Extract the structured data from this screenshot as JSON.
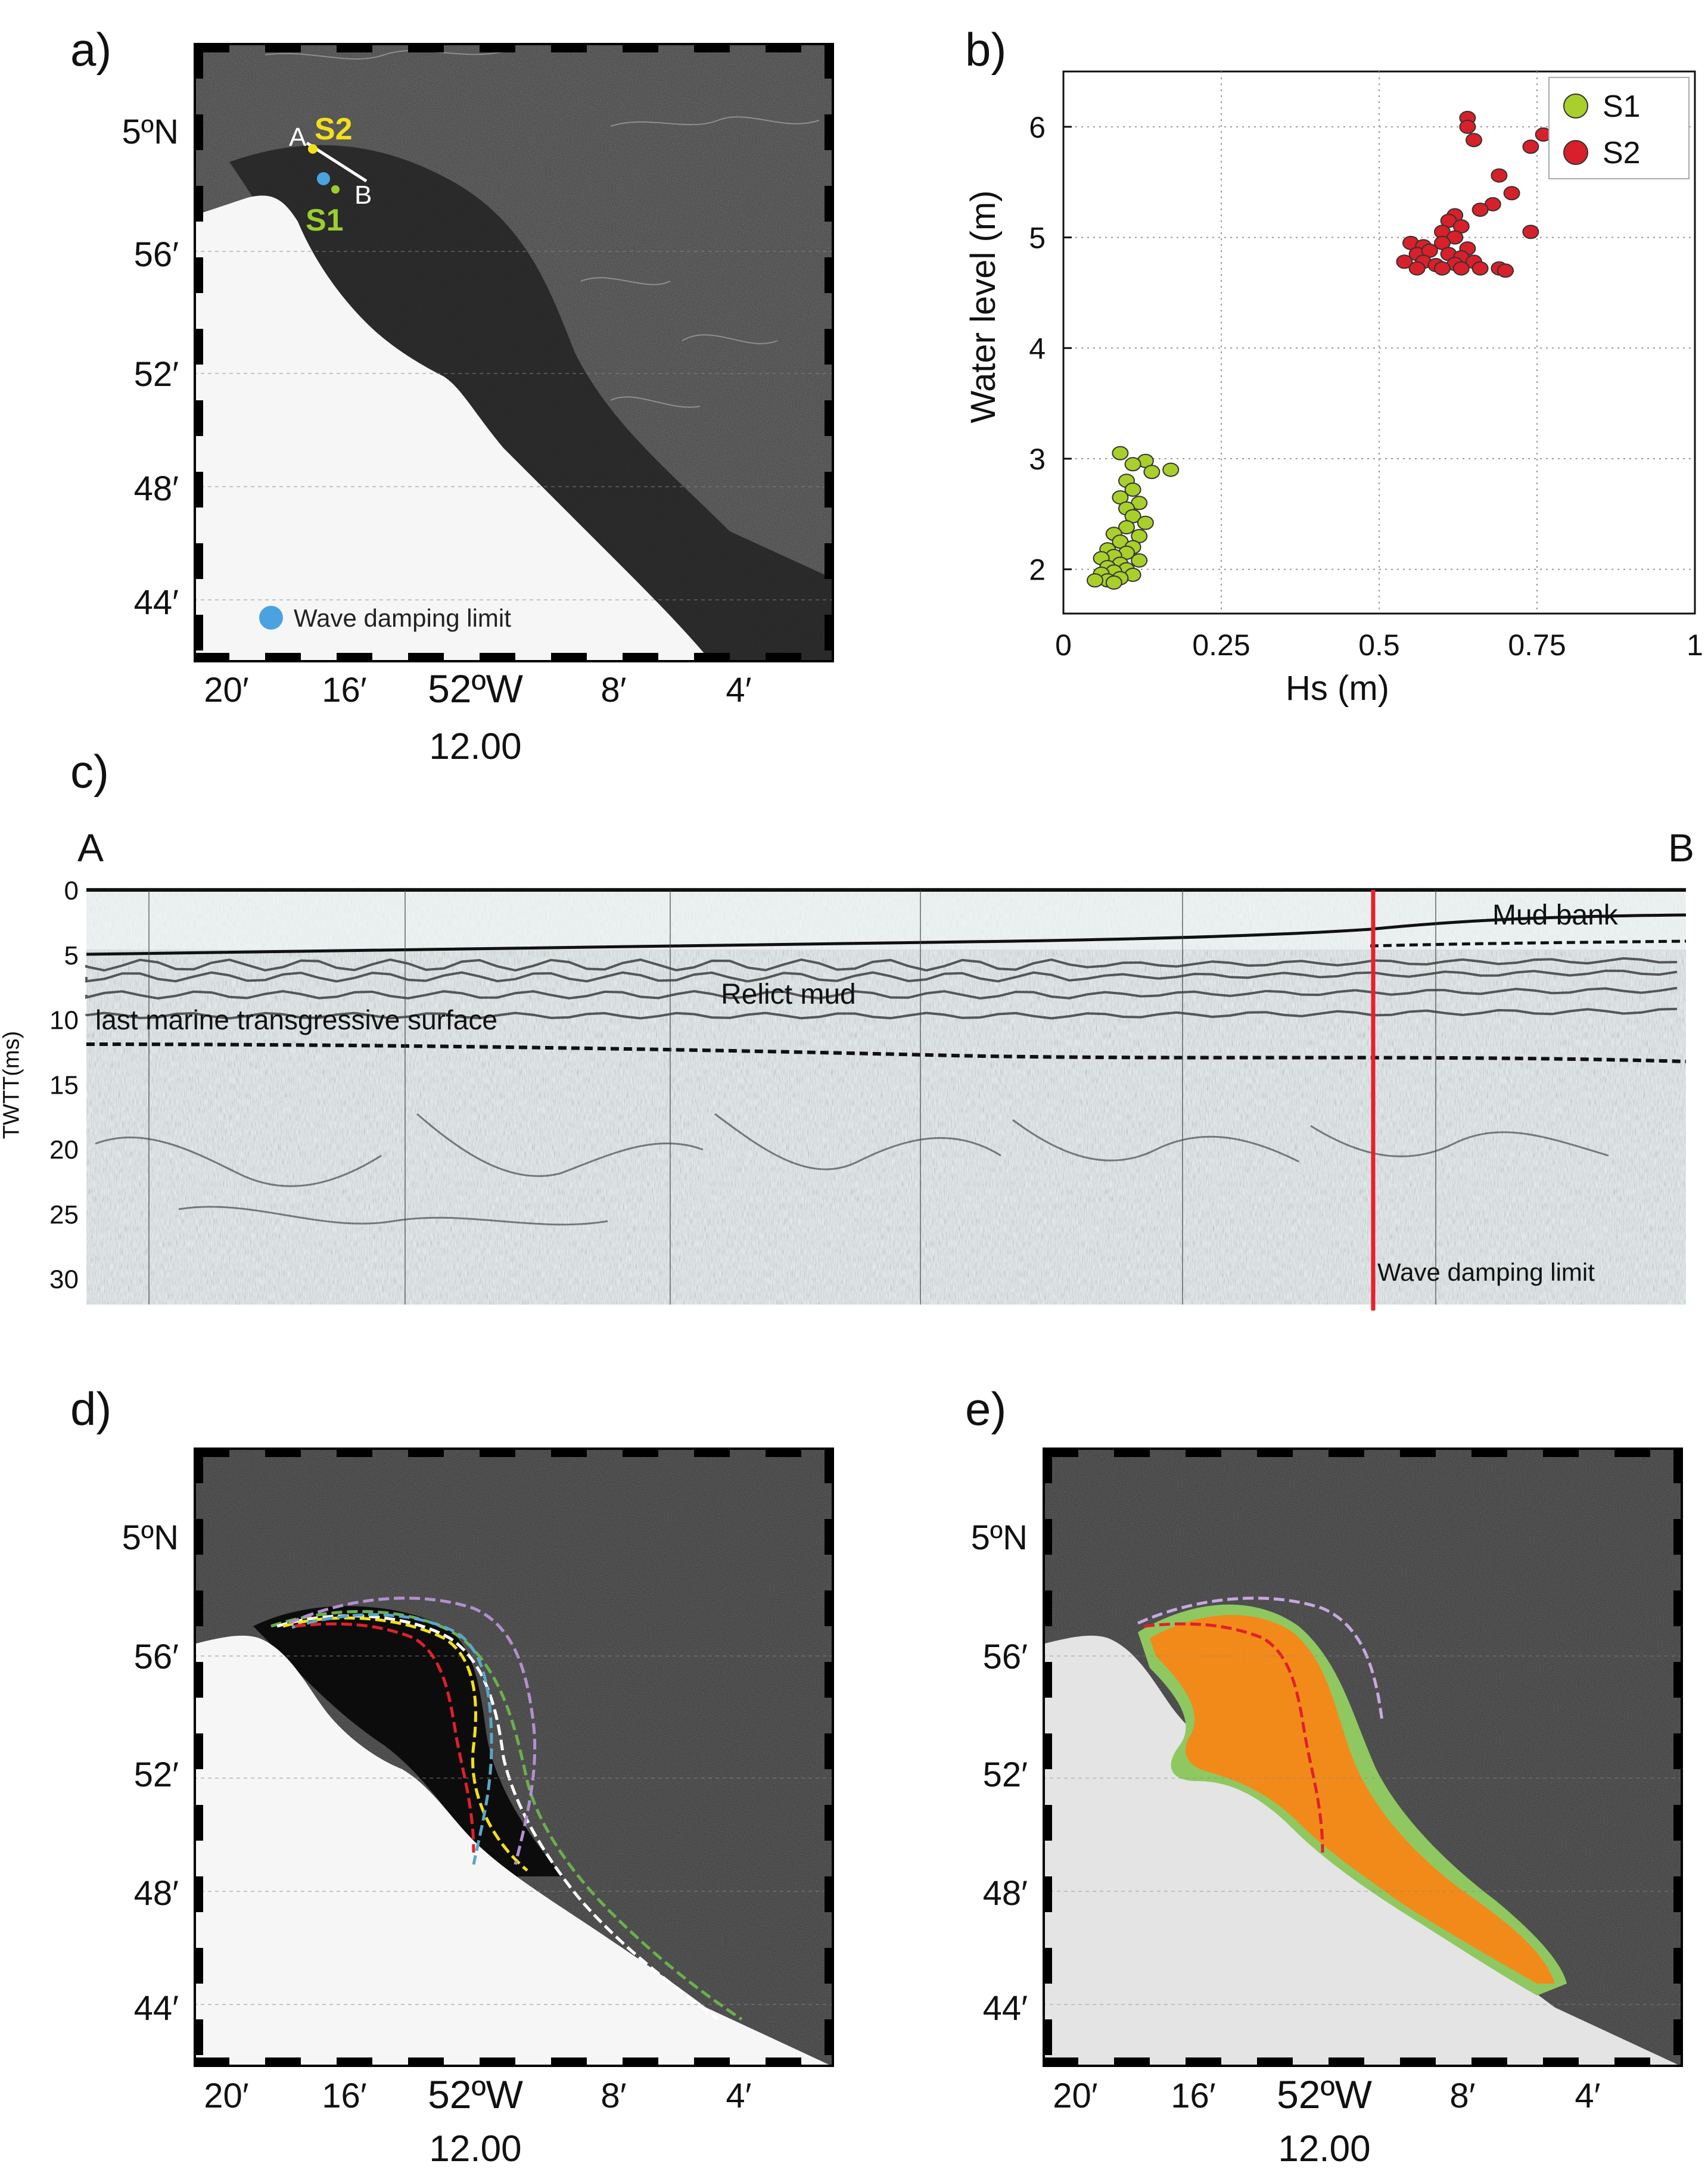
{
  "panels": {
    "a": {
      "label": "a)"
    },
    "b": {
      "label": "b)"
    },
    "c": {
      "label": "c)"
    },
    "d": {
      "label": "d)"
    },
    "e": {
      "label": "e)"
    }
  },
  "map_axes": {
    "lat_ticks": [
      "5ºN",
      "56′",
      "52′",
      "48′",
      "44′"
    ],
    "lon_ticks": [
      "20′",
      "16′",
      "52ºW",
      "8′",
      "4′"
    ],
    "lon_sub": "12.00"
  },
  "map_a": {
    "point_a": "A",
    "point_b": "B",
    "station_s2": "S2",
    "station_s1": "S1",
    "legend_text": "Wave damping limit",
    "legend_color": "#4aa3e0",
    "s2_color": "#f4e01a",
    "s1_color": "#9acd32"
  },
  "chart_data": {
    "type": "scatter",
    "title": "",
    "xlabel": "Hs (m)",
    "ylabel": "Water level (m)",
    "xlim": [
      0,
      1
    ],
    "ylim": [
      1.6,
      6.5
    ],
    "x_ticks": [
      "0",
      "0.25",
      "0.5",
      "0.75",
      "1"
    ],
    "y_ticks": [
      "2",
      "3",
      "4",
      "5",
      "6"
    ],
    "grid": true,
    "legend_placement": "top-right",
    "series": [
      {
        "name": "S1",
        "color": "#a9cf2b",
        "points": [
          [
            0.09,
            3.05
          ],
          [
            0.13,
            2.98
          ],
          [
            0.11,
            2.95
          ],
          [
            0.17,
            2.9
          ],
          [
            0.14,
            2.88
          ],
          [
            0.1,
            2.8
          ],
          [
            0.11,
            2.72
          ],
          [
            0.09,
            2.65
          ],
          [
            0.12,
            2.6
          ],
          [
            0.1,
            2.55
          ],
          [
            0.11,
            2.48
          ],
          [
            0.13,
            2.42
          ],
          [
            0.1,
            2.38
          ],
          [
            0.08,
            2.32
          ],
          [
            0.12,
            2.3
          ],
          [
            0.09,
            2.25
          ],
          [
            0.11,
            2.2
          ],
          [
            0.07,
            2.18
          ],
          [
            0.1,
            2.15
          ],
          [
            0.08,
            2.12
          ],
          [
            0.06,
            2.1
          ],
          [
            0.12,
            2.08
          ],
          [
            0.09,
            2.05
          ],
          [
            0.07,
            2.02
          ],
          [
            0.1,
            2.0
          ],
          [
            0.08,
            1.98
          ],
          [
            0.06,
            1.96
          ],
          [
            0.11,
            1.95
          ],
          [
            0.09,
            1.92
          ],
          [
            0.07,
            1.9
          ],
          [
            0.05,
            1.9
          ],
          [
            0.08,
            1.88
          ]
        ]
      },
      {
        "name": "S2",
        "color": "#d8202a",
        "points": [
          [
            0.64,
            6.08
          ],
          [
            0.64,
            6.0
          ],
          [
            0.76,
            5.93
          ],
          [
            0.65,
            5.88
          ],
          [
            0.74,
            5.82
          ],
          [
            0.69,
            5.56
          ],
          [
            0.71,
            5.4
          ],
          [
            0.68,
            5.3
          ],
          [
            0.66,
            5.25
          ],
          [
            0.62,
            5.2
          ],
          [
            0.61,
            5.15
          ],
          [
            0.63,
            5.1
          ],
          [
            0.6,
            5.05
          ],
          [
            0.62,
            5.0
          ],
          [
            0.74,
            5.05
          ],
          [
            0.55,
            4.95
          ],
          [
            0.57,
            4.92
          ],
          [
            0.6,
            4.95
          ],
          [
            0.64,
            4.9
          ],
          [
            0.56,
            4.85
          ],
          [
            0.58,
            4.88
          ],
          [
            0.61,
            4.85
          ],
          [
            0.63,
            4.82
          ],
          [
            0.54,
            4.78
          ],
          [
            0.57,
            4.78
          ],
          [
            0.59,
            4.75
          ],
          [
            0.62,
            4.76
          ],
          [
            0.65,
            4.78
          ],
          [
            0.6,
            4.72
          ],
          [
            0.63,
            4.72
          ],
          [
            0.66,
            4.72
          ],
          [
            0.69,
            4.72
          ],
          [
            0.7,
            4.7
          ],
          [
            0.56,
            4.72
          ]
        ]
      }
    ]
  },
  "seismic": {
    "label_a": "A",
    "label_b": "B",
    "y_axis_label": "TWTT(ms)",
    "y_ticks": [
      "0",
      "5",
      "10",
      "15",
      "20",
      "25",
      "30"
    ],
    "mud_bank": "Mud bank",
    "relict_mud": "Relict mud",
    "transgressive": "last marine transgressive surface",
    "wave_limit": "Wave damping limit",
    "limit_color": "#e8202a"
  }
}
